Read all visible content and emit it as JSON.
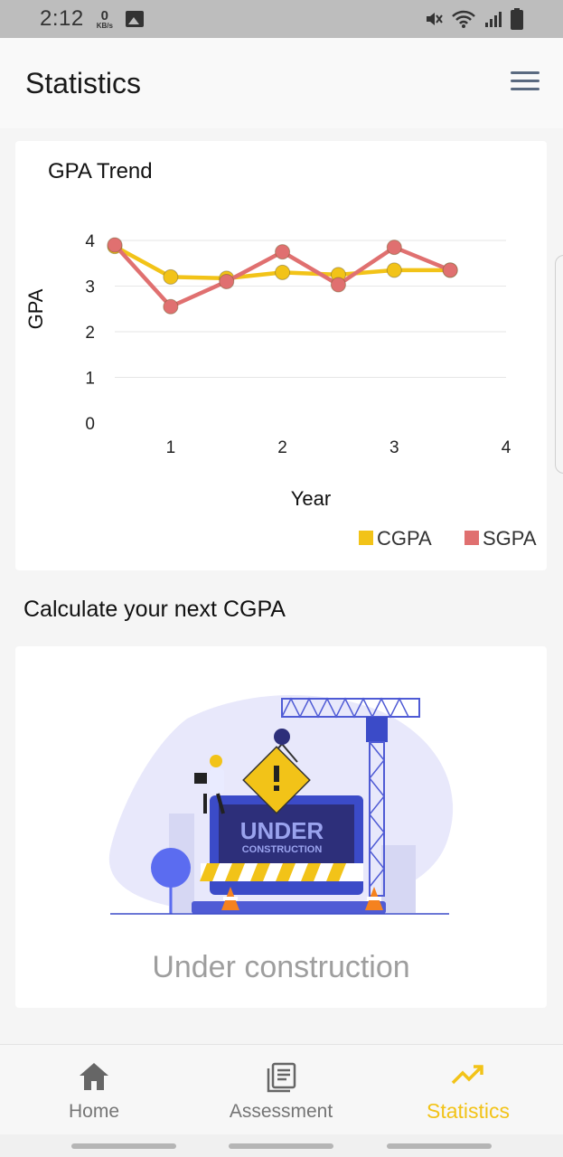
{
  "status_bar": {
    "time": "2:12",
    "speed_value": "0",
    "speed_unit": "KB/s"
  },
  "header": {
    "title": "Statistics"
  },
  "gpa_card": {
    "title": "GPA Trend"
  },
  "chart_data": {
    "type": "line",
    "title": "GPA Trend",
    "xlabel": "Year",
    "ylabel": "GPA",
    "xlim": [
      0.5,
      4
    ],
    "ylim": [
      0,
      4
    ],
    "x_ticks": [
      1,
      2,
      3,
      4
    ],
    "y_ticks": [
      0,
      1,
      2,
      3,
      4
    ],
    "grid": "horizontal",
    "legend": "bottom-right",
    "series": [
      {
        "name": "CGPA",
        "color": "#f2c318",
        "x": [
          0.5,
          1,
          1.5,
          2,
          2.5,
          3,
          3.5
        ],
        "y": [
          3.87,
          3.2,
          3.17,
          3.3,
          3.25,
          3.35,
          3.35
        ]
      },
      {
        "name": "SGPA",
        "color": "#e07070",
        "x": [
          0.5,
          1,
          1.5,
          2,
          2.5,
          3,
          3.5
        ],
        "y": [
          3.9,
          2.55,
          3.1,
          3.75,
          3.03,
          3.85,
          3.35
        ]
      }
    ]
  },
  "calculator": {
    "section_title": "Calculate your next CGPA",
    "sign_line1": "UNDER",
    "sign_line2": "CONSTRUCTION",
    "message": "Under construction"
  },
  "bottom_nav": {
    "home": "Home",
    "assessment": "Assessment",
    "statistics": "Statistics",
    "active_color": "#f2c318"
  }
}
